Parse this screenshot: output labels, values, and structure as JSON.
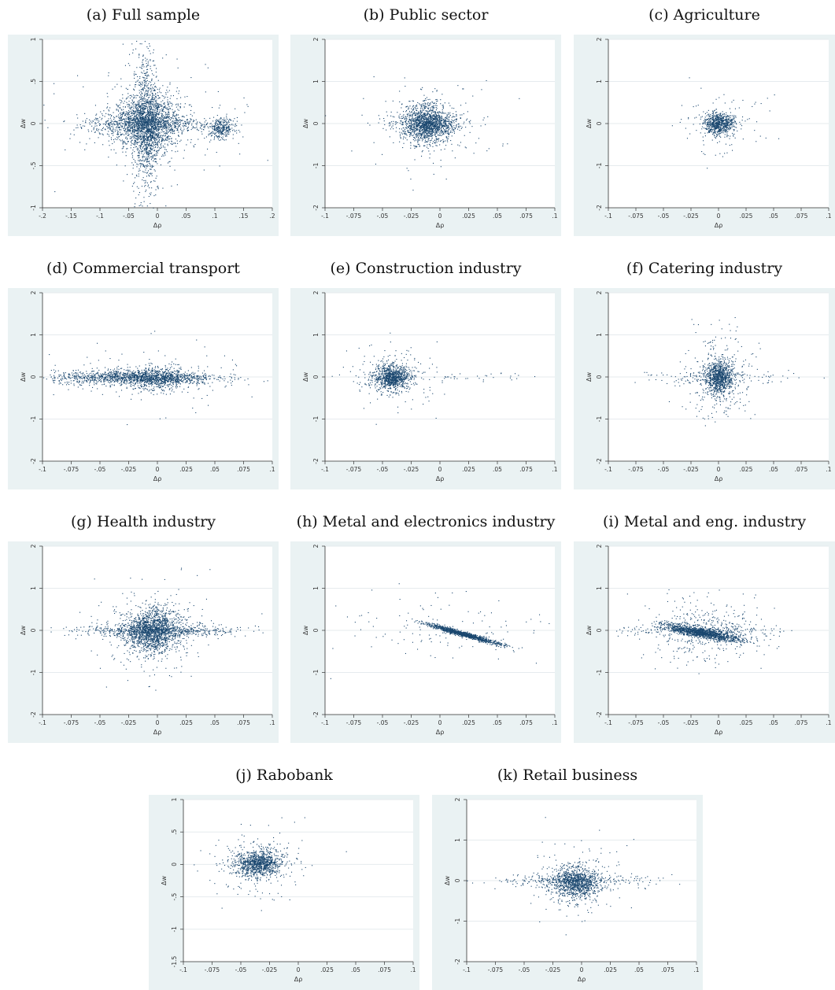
{
  "colors": {
    "panel_bg": "#eaf2f3",
    "plot_bg": "#ffffff",
    "points": "#1a476f"
  },
  "chart_data": [
    {
      "id": "a",
      "type": "scatter",
      "title": "(a) Full sample",
      "xlabel": "Δρ",
      "ylabel": "Δw",
      "xlim": [
        -0.2,
        0.2
      ],
      "ylim": [
        -1,
        1
      ],
      "xticks": [
        -0.2,
        -0.15,
        -0.1,
        -0.05,
        0,
        0.05,
        0.1,
        0.15,
        0.2
      ],
      "xtick_labels": [
        "-.2",
        "-.15",
        "-.1",
        "-.05",
        "0",
        ".05",
        ".1",
        ".15",
        ".2"
      ],
      "yticks": [
        -1,
        -0.5,
        0,
        0.5,
        1
      ],
      "ytick_labels": [
        "-1",
        "-.5",
        "0",
        ".5",
        "1"
      ],
      "clusters": [
        {
          "cx": -0.02,
          "cy": 0.0,
          "sx": 0.028,
          "sy": 0.18,
          "n": 1600
        },
        {
          "cx": -0.02,
          "cy": 0.0,
          "sx": 0.012,
          "sy": 0.45,
          "n": 900
        },
        {
          "cx": -0.02,
          "cy": 0.0,
          "sx": 0.06,
          "sy": 0.05,
          "n": 500
        },
        {
          "cx": 0.11,
          "cy": -0.05,
          "sx": 0.012,
          "sy": 0.06,
          "n": 300
        },
        {
          "cx": 0.0,
          "cy": 0.0,
          "sx": 0.08,
          "sy": 0.3,
          "n": 200
        }
      ]
    },
    {
      "id": "b",
      "type": "scatter",
      "title": "(b) Public sector",
      "xlabel": "Δρ",
      "ylabel": "Δw",
      "xlim": [
        -0.1,
        0.1
      ],
      "ylim": [
        -2,
        2
      ],
      "xticks": [
        -0.1,
        -0.075,
        -0.05,
        -0.025,
        0,
        0.025,
        0.05,
        0.075,
        0.1
      ],
      "xtick_labels": [
        "-.1",
        "-.075",
        "-.05",
        "-.025",
        "0",
        ".025",
        ".05",
        ".075",
        ".1"
      ],
      "yticks": [
        -2,
        -1,
        0,
        1,
        2
      ],
      "ytick_labels": [
        "-2",
        "-1",
        "0",
        "1",
        "2"
      ],
      "clusters": [
        {
          "cx": -0.012,
          "cy": 0.0,
          "sx": 0.01,
          "sy": 0.25,
          "n": 1100
        },
        {
          "cx": -0.01,
          "cy": 0.0,
          "sx": 0.015,
          "sy": 0.12,
          "n": 500
        },
        {
          "cx": -0.01,
          "cy": 0.0,
          "sx": 0.03,
          "sy": 0.5,
          "n": 150
        }
      ]
    },
    {
      "id": "c",
      "type": "scatter",
      "title": "(c) Agriculture",
      "xlabel": "Δρ",
      "ylabel": "Δw",
      "xlim": [
        -0.1,
        0.1
      ],
      "ylim": [
        -2,
        2
      ],
      "xticks": [
        -0.1,
        -0.075,
        -0.05,
        -0.025,
        0,
        0.025,
        0.05,
        0.075,
        0.1
      ],
      "xtick_labels": [
        "-.1",
        "-.075",
        "-.05",
        "-.025",
        "0",
        ".025",
        ".05",
        ".075",
        ".1"
      ],
      "yticks": [
        -2,
        -1,
        0,
        1,
        2
      ],
      "ytick_labels": [
        "-2",
        "-1",
        "0",
        "1",
        "2"
      ],
      "clusters": [
        {
          "cx": 0.0,
          "cy": 0.0,
          "sx": 0.007,
          "sy": 0.12,
          "n": 700
        },
        {
          "cx": 0.0,
          "cy": 0.0,
          "sx": 0.02,
          "sy": 0.35,
          "n": 120
        }
      ]
    },
    {
      "id": "d",
      "type": "scatter",
      "title": "(d) Commercial transport",
      "xlabel": "Δρ",
      "ylabel": "Δw",
      "xlim": [
        -0.1,
        0.1
      ],
      "ylim": [
        -2,
        2
      ],
      "xticks": [
        -0.1,
        -0.075,
        -0.05,
        -0.025,
        0,
        0.025,
        0.05,
        0.075,
        0.1
      ],
      "xtick_labels": [
        "-.1",
        "-.075",
        "-.05",
        "-.025",
        "0",
        ".025",
        ".05",
        ".075",
        ".1"
      ],
      "yticks": [
        -2,
        -1,
        0,
        1,
        2
      ],
      "ytick_labels": [
        "-2",
        "-1",
        "0",
        "1",
        "2"
      ],
      "clusters": [
        {
          "cx": -0.02,
          "cy": 0.0,
          "sx": 0.035,
          "sy": 0.08,
          "n": 1300
        },
        {
          "cx": 0.0,
          "cy": -0.05,
          "sx": 0.015,
          "sy": 0.15,
          "n": 500
        },
        {
          "cx": -0.01,
          "cy": 0.0,
          "sx": 0.04,
          "sy": 0.4,
          "n": 120
        }
      ]
    },
    {
      "id": "e",
      "type": "scatter",
      "title": "(e) Construction industry",
      "xlabel": "Δρ",
      "ylabel": "Δw",
      "xlim": [
        -0.1,
        0.1
      ],
      "ylim": [
        -2,
        2
      ],
      "xticks": [
        -0.1,
        -0.075,
        -0.05,
        -0.025,
        0,
        0.025,
        0.05,
        0.075,
        0.1
      ],
      "xtick_labels": [
        "-.1",
        "-.075",
        "-.05",
        "-.025",
        "0",
        ".025",
        ".05",
        ".075",
        ".1"
      ],
      "yticks": [
        -2,
        -1,
        0,
        1,
        2
      ],
      "ytick_labels": [
        "-2",
        "-1",
        "0",
        "1",
        "2"
      ],
      "clusters": [
        {
          "cx": -0.042,
          "cy": 0.0,
          "sx": 0.008,
          "sy": 0.14,
          "n": 900
        },
        {
          "cx": -0.04,
          "cy": 0.0,
          "sx": 0.02,
          "sy": 0.4,
          "n": 150
        },
        {
          "cx": 0.0,
          "cy": 0.0,
          "sx": 0.04,
          "sy": 0.05,
          "n": 60
        }
      ]
    },
    {
      "id": "f",
      "type": "scatter",
      "title": "(f) Catering industry",
      "xlabel": "Δρ",
      "ylabel": "Δw",
      "xlim": [
        -0.1,
        0.1
      ],
      "ylim": [
        -2,
        2
      ],
      "xticks": [
        -0.1,
        -0.075,
        -0.05,
        -0.025,
        0,
        0.025,
        0.05,
        0.075,
        0.1
      ],
      "xtick_labels": [
        "-.1",
        "-.075",
        "-.05",
        "-.025",
        "0",
        ".025",
        ".05",
        ".075",
        ".1"
      ],
      "yticks": [
        -2,
        -1,
        0,
        1,
        2
      ],
      "ytick_labels": [
        "-2",
        "-1",
        "0",
        "1",
        "2"
      ],
      "clusters": [
        {
          "cx": 0.0,
          "cy": 0.0,
          "sx": 0.006,
          "sy": 0.2,
          "n": 800
        },
        {
          "cx": 0.0,
          "cy": 0.0,
          "sx": 0.015,
          "sy": 0.5,
          "n": 350
        },
        {
          "cx": 0.0,
          "cy": 0.0,
          "sx": 0.04,
          "sy": 0.08,
          "n": 100
        }
      ]
    },
    {
      "id": "g",
      "type": "scatter",
      "title": "(g) Health industry",
      "xlabel": "Δρ",
      "ylabel": "Δw",
      "xlim": [
        -0.1,
        0.1
      ],
      "ylim": [
        -2,
        2
      ],
      "xticks": [
        -0.1,
        -0.075,
        -0.05,
        -0.025,
        0,
        0.025,
        0.05,
        0.075,
        0.1
      ],
      "xtick_labels": [
        "-.1",
        "-.075",
        "-.05",
        "-.025",
        "0",
        ".025",
        ".05",
        ".075",
        ".1"
      ],
      "yticks": [
        -2,
        -1,
        0,
        1,
        2
      ],
      "ytick_labels": [
        "-2",
        "-1",
        "0",
        "1",
        "2"
      ],
      "clusters": [
        {
          "cx": -0.005,
          "cy": 0.0,
          "sx": 0.012,
          "sy": 0.25,
          "n": 1500
        },
        {
          "cx": 0.0,
          "cy": 0.0,
          "sx": 0.035,
          "sy": 0.07,
          "n": 600
        },
        {
          "cx": -0.005,
          "cy": 0.0,
          "sx": 0.025,
          "sy": 0.5,
          "n": 250
        }
      ]
    },
    {
      "id": "h",
      "type": "scatter",
      "title": "(h) Metal and electronics industry",
      "xlabel": "Δρ",
      "ylabel": "Δw",
      "xlim": [
        -0.1,
        0.1
      ],
      "ylim": [
        -2,
        2
      ],
      "xticks": [
        -0.1,
        -0.075,
        -0.05,
        -0.025,
        0,
        0.025,
        0.05,
        0.075,
        0.1
      ],
      "xtick_labels": [
        "-.1",
        "-.075",
        "-.05",
        "-.025",
        "0",
        ".025",
        ".05",
        ".075",
        ".1"
      ],
      "yticks": [
        -2,
        -1,
        0,
        1,
        2
      ],
      "ytick_labels": [
        "-2",
        "-1",
        "0",
        "1",
        "2"
      ],
      "clusters": [
        {
          "cx": 0.02,
          "cy": -0.08,
          "sx": 0.016,
          "sy": 0.03,
          "slope": -7.5,
          "n": 1100
        },
        {
          "cx": 0.0,
          "cy": 0.0,
          "sx": 0.05,
          "sy": 0.4,
          "n": 120
        }
      ]
    },
    {
      "id": "i",
      "type": "scatter",
      "title": "(i) Metal and eng. industry",
      "xlabel": "Δρ",
      "ylabel": "Δw",
      "xlim": [
        -0.1,
        0.1
      ],
      "ylim": [
        -2,
        2
      ],
      "xticks": [
        -0.1,
        -0.075,
        -0.05,
        -0.025,
        0,
        0.025,
        0.05,
        0.075,
        0.1
      ],
      "xtick_labels": [
        "-.1",
        "-.075",
        "-.05",
        "-.025",
        "0",
        ".025",
        ".05",
        ".075",
        ".1"
      ],
      "yticks": [
        -2,
        -1,
        0,
        1,
        2
      ],
      "ytick_labels": [
        "-2",
        "-1",
        "0",
        "1",
        "2"
      ],
      "clusters": [
        {
          "cx": -0.015,
          "cy": -0.05,
          "sx": 0.018,
          "sy": 0.06,
          "slope": -4.5,
          "n": 1300
        },
        {
          "cx": -0.015,
          "cy": 0.0,
          "sx": 0.025,
          "sy": 0.35,
          "n": 400
        },
        {
          "cx": -0.02,
          "cy": 0.0,
          "sx": 0.04,
          "sy": 0.08,
          "n": 200
        }
      ]
    },
    {
      "id": "j",
      "type": "scatter",
      "title": "(j) Rabobank",
      "xlabel": "Δρ",
      "ylabel": "Δw",
      "xlim": [
        -0.1,
        0.1
      ],
      "ylim": [
        -1.5,
        1
      ],
      "xticks": [
        -0.1,
        -0.075,
        -0.05,
        -0.025,
        0,
        0.025,
        0.05,
        0.075,
        0.1
      ],
      "xtick_labels": [
        "-.1",
        "-.075",
        "-.05",
        "-.025",
        "0",
        ".025",
        ".05",
        ".075",
        ".1"
      ],
      "yticks": [
        -1.5,
        -1,
        -0.5,
        0,
        0.5,
        1
      ],
      "ytick_labels": [
        "-1.5",
        "-1",
        "-.5",
        "0",
        ".5",
        "1"
      ],
      "clusters": [
        {
          "cx": -0.035,
          "cy": 0.02,
          "sx": 0.01,
          "sy": 0.1,
          "n": 1000
        },
        {
          "cx": -0.035,
          "cy": 0.0,
          "sx": 0.02,
          "sy": 0.25,
          "n": 200
        }
      ]
    },
    {
      "id": "k",
      "type": "scatter",
      "title": "(k) Retail business",
      "xlabel": "Δρ",
      "ylabel": "Δw",
      "xlim": [
        -0.1,
        0.1
      ],
      "ylim": [
        -2,
        2
      ],
      "xticks": [
        -0.1,
        -0.075,
        -0.05,
        -0.025,
        0,
        0.025,
        0.05,
        0.075,
        0.1
      ],
      "xtick_labels": [
        "-.1",
        "-.075",
        "-.05",
        "-.025",
        "0",
        ".025",
        ".05",
        ".075",
        ".1"
      ],
      "yticks": [
        -2,
        -1,
        0,
        1,
        2
      ],
      "ytick_labels": [
        "-2",
        "-1",
        "0",
        "1",
        "2"
      ],
      "clusters": [
        {
          "cx": -0.005,
          "cy": -0.05,
          "sx": 0.01,
          "sy": 0.2,
          "n": 1000
        },
        {
          "cx": -0.01,
          "cy": 0.0,
          "sx": 0.035,
          "sy": 0.08,
          "n": 300
        },
        {
          "cx": -0.005,
          "cy": 0.0,
          "sx": 0.02,
          "sy": 0.5,
          "n": 150
        }
      ]
    }
  ]
}
